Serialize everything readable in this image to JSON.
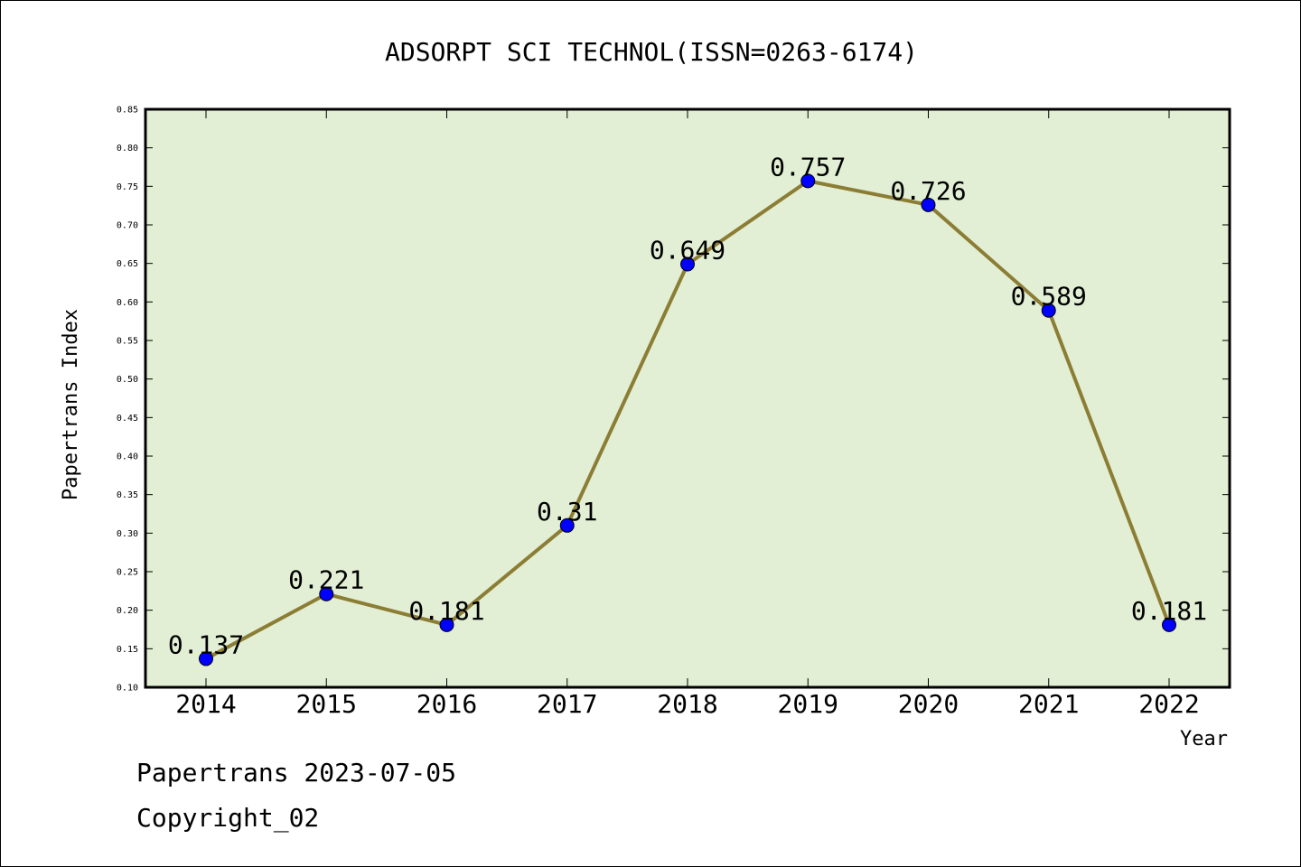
{
  "chart_data": {
    "type": "line",
    "title": "ADSORPT SCI TECHNOL(ISSN=0263-6174)",
    "xlabel": "Year",
    "ylabel": "Papertrans Index",
    "categories": [
      "2014",
      "2015",
      "2016",
      "2017",
      "2018",
      "2019",
      "2020",
      "2021",
      "2022"
    ],
    "values": [
      0.137,
      0.221,
      0.181,
      0.31,
      0.649,
      0.757,
      0.726,
      0.589,
      0.181
    ],
    "data_labels": [
      "0.137",
      "0.221",
      "0.181",
      "0.31",
      "0.649",
      "0.757",
      "0.726",
      "0.589",
      "0.181"
    ],
    "ylim": [
      0.1,
      0.85
    ],
    "yticks": [
      "0.10",
      "0.15",
      "0.20",
      "0.25",
      "0.30",
      "0.35",
      "0.40",
      "0.45",
      "0.50",
      "0.55",
      "0.60",
      "0.65",
      "0.70",
      "0.75",
      "0.80",
      "0.85"
    ],
    "grid": false,
    "colors": {
      "plot_background": "#e2efd4",
      "line": "#8c7d35",
      "marker": "#0000ff"
    }
  },
  "footer": {
    "line1": "Papertrans 2023-07-05",
    "line2": "Copyright_02"
  }
}
